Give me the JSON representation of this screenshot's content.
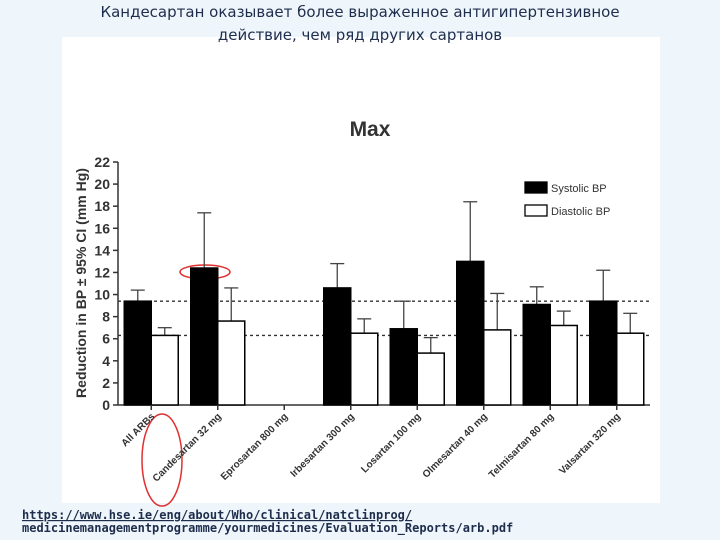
{
  "slide": {
    "title_lines": [
      "Кандесартан оказывает более выраженное антигипертензивное",
      "действие, чем ряд других сартанов"
    ],
    "source_lines": [
      "https://www.hse.ie/eng/about/Who/clinical/natclinprog/",
      "medicinemanagementprogramme/yourmedicines/Evaluation_Reports/arb.pdf"
    ]
  },
  "chart_data": {
    "type": "bar",
    "title": "Max",
    "y_label": "Reduction in BP ± 95% CI (mm Hg)",
    "categories": [
      "All ARBs",
      "Candesartan 32 mg",
      "Eprosartan 800 mg",
      "Irbesartan 300 mg",
      "Losartan 100 mg",
      "Olmesartan 40 mg",
      "Telmisartan 80 mg",
      "Valsartan 320 mg"
    ],
    "series": [
      {
        "name": "Systolic BP",
        "color": "#000000",
        "values": [
          9.4,
          12.4,
          null,
          10.6,
          6.9,
          13.0,
          9.1,
          9.4
        ],
        "errors": [
          1.0,
          5.0,
          null,
          2.2,
          2.5,
          5.4,
          1.6,
          2.8
        ]
      },
      {
        "name": "Diastolic BP",
        "color": "#ffffff",
        "values": [
          6.3,
          7.6,
          null,
          6.5,
          4.7,
          6.8,
          7.2,
          6.5
        ],
        "errors": [
          0.7,
          3.0,
          null,
          1.3,
          1.4,
          3.3,
          1.3,
          1.8
        ]
      }
    ],
    "reference_lines": [
      9.4,
      6.3
    ],
    "ylim": [
      0,
      22
    ],
    "yticks": [
      0,
      2,
      4,
      6,
      8,
      10,
      12,
      14,
      16,
      18,
      20,
      22
    ],
    "legend": "upper right"
  }
}
